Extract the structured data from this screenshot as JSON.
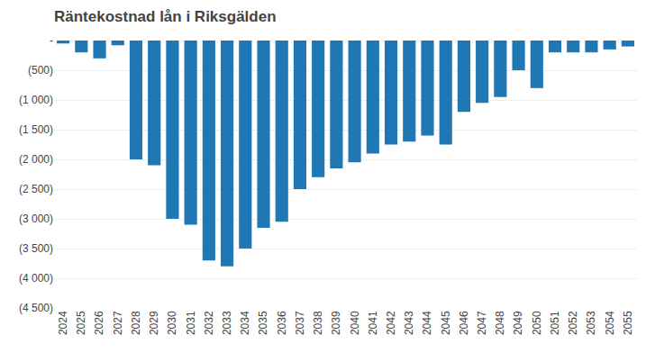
{
  "chart_data": {
    "type": "bar",
    "title": "Räntekostnad lån i Riksgälden",
    "categories": [
      "2024",
      "2025",
      "2026",
      "2027",
      "2028",
      "2029",
      "2030",
      "2031",
      "2032",
      "2033",
      "2034",
      "2035",
      "2036",
      "2037",
      "2038",
      "2039",
      "2040",
      "2041",
      "2042",
      "2043",
      "2044",
      "2045",
      "2046",
      "2047",
      "2048",
      "2049",
      "2050",
      "2051",
      "2052",
      "2053",
      "2054",
      "2055"
    ],
    "values": [
      -50,
      -200,
      -300,
      -80,
      -2000,
      -2100,
      -3000,
      -3100,
      -3700,
      -3800,
      -3500,
      -3150,
      -3050,
      -2500,
      -2300,
      -2150,
      -2050,
      -1900,
      -1750,
      -1700,
      -1600,
      -1750,
      -1200,
      -1050,
      -950,
      -500,
      -800,
      -200,
      -200,
      -200,
      -150,
      -100
    ],
    "ylim": [
      -4500,
      0
    ],
    "yticks": [
      {
        "value": 0,
        "label": "-"
      },
      {
        "value": -500,
        "label": "(500)"
      },
      {
        "value": -1000,
        "label": "(1 000)"
      },
      {
        "value": -1500,
        "label": "(1 500)"
      },
      {
        "value": -2000,
        "label": "(2 000)"
      },
      {
        "value": -2500,
        "label": "(2 500)"
      },
      {
        "value": -3000,
        "label": "(3 000)"
      },
      {
        "value": -3500,
        "label": "(3 500)"
      },
      {
        "value": -4000,
        "label": "(4 000)"
      },
      {
        "value": -4500,
        "label": "(4 500)"
      }
    ],
    "grid": true
  }
}
